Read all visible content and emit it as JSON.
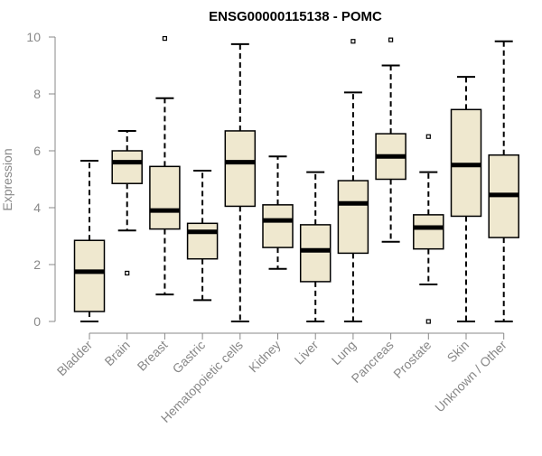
{
  "chart_data": {
    "type": "box",
    "title": "ENSG00000115138 - POMC",
    "xlabel": "",
    "ylabel": "Expression",
    "ylim": [
      0,
      10
    ],
    "yticks": [
      0,
      2,
      4,
      6,
      8,
      10
    ],
    "grid": false,
    "legend": "none",
    "colors": {
      "box_fill": "#efe8cf",
      "stroke": "#000000",
      "axis": "#888888",
      "title": "#000000"
    },
    "categories": [
      "Bladder",
      "Brain",
      "Breast",
      "Gastric",
      "Hematopoietic cells",
      "Kidney",
      "Liver",
      "Lung",
      "Pancreas",
      "Prostate",
      "Skin",
      "Unknown / Other"
    ],
    "boxes": [
      {
        "min": 0.0,
        "q1": 0.35,
        "median": 1.75,
        "q3": 2.85,
        "max": 5.65,
        "outliers": []
      },
      {
        "min": 3.2,
        "q1": 4.85,
        "median": 5.6,
        "q3": 6.0,
        "max": 6.7,
        "outliers": [
          1.7
        ]
      },
      {
        "min": 0.95,
        "q1": 3.25,
        "median": 3.9,
        "q3": 5.45,
        "max": 7.85,
        "outliers": [
          9.95
        ]
      },
      {
        "min": 0.75,
        "q1": 2.2,
        "median": 3.15,
        "q3": 3.45,
        "max": 5.3,
        "outliers": []
      },
      {
        "min": 0.0,
        "q1": 4.05,
        "median": 5.6,
        "q3": 6.7,
        "max": 9.75,
        "outliers": []
      },
      {
        "min": 1.85,
        "q1": 2.6,
        "median": 3.55,
        "q3": 4.1,
        "max": 5.8,
        "outliers": []
      },
      {
        "min": 0.0,
        "q1": 1.4,
        "median": 2.5,
        "q3": 3.4,
        "max": 5.25,
        "outliers": []
      },
      {
        "min": 0.0,
        "q1": 2.4,
        "median": 4.15,
        "q3": 4.95,
        "max": 8.05,
        "outliers": [
          9.85
        ]
      },
      {
        "min": 2.8,
        "q1": 5.0,
        "median": 5.8,
        "q3": 6.6,
        "max": 9.0,
        "outliers": [
          9.9
        ]
      },
      {
        "min": 1.3,
        "q1": 2.55,
        "median": 3.3,
        "q3": 3.75,
        "max": 5.25,
        "outliers": [
          6.5,
          0.0
        ]
      },
      {
        "min": 0.0,
        "q1": 3.7,
        "median": 5.5,
        "q3": 7.45,
        "max": 8.6,
        "outliers": []
      },
      {
        "min": 0.0,
        "q1": 2.95,
        "median": 4.45,
        "q3": 5.85,
        "max": 9.85,
        "outliers": []
      }
    ]
  }
}
